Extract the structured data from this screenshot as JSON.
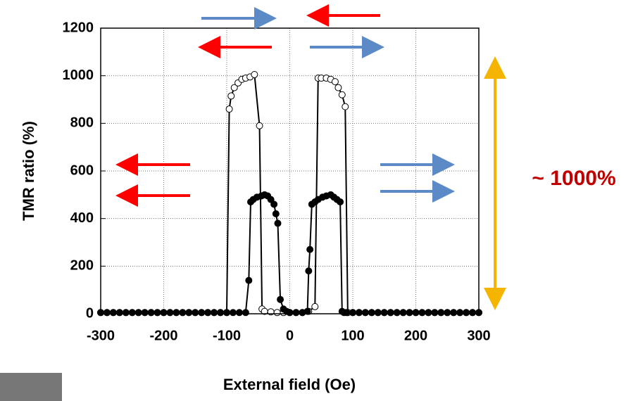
{
  "chart_data": {
    "type": "line",
    "x_label": "External field (Oe)",
    "y_label": "TMR ratio (%)",
    "annotation": "~ 1000%",
    "xlim": [
      -300,
      300
    ],
    "xticks": [
      -300,
      -200,
      -100,
      0,
      100,
      200,
      300
    ],
    "ylim": [
      0,
      1200
    ],
    "yticks": [
      0,
      200,
      400,
      600,
      800,
      1000,
      1200
    ],
    "grid": true,
    "series": [
      {
        "color": "#ffffff",
        "marker_edge": "#000000",
        "x": [
          -300,
          -290,
          -280,
          -270,
          -260,
          -250,
          -240,
          -230,
          -220,
          -210,
          -200,
          -190,
          -180,
          -170,
          -160,
          -150,
          -140,
          -130,
          -120,
          -110,
          -100,
          -96,
          -93,
          -88,
          -82,
          -76,
          -70,
          -63,
          -56,
          -48,
          -44,
          -40,
          -30,
          -20,
          -10,
          0,
          10,
          20,
          30,
          40,
          45,
          50,
          58,
          65,
          72,
          77,
          83,
          88,
          92,
          100,
          110,
          120,
          130,
          140,
          150,
          160,
          170,
          180,
          190,
          200,
          210,
          220,
          230,
          240,
          250,
          260,
          270,
          280,
          290,
          300
        ],
        "values": [
          5,
          5,
          5,
          5,
          5,
          5,
          5,
          5,
          5,
          5,
          5,
          5,
          5,
          5,
          5,
          5,
          5,
          5,
          5,
          5,
          5,
          860,
          915,
          950,
          970,
          985,
          990,
          995,
          1005,
          790,
          20,
          10,
          8,
          5,
          5,
          5,
          5,
          5,
          10,
          30,
          990,
          990,
          990,
          985,
          975,
          950,
          920,
          870,
          5,
          5,
          5,
          5,
          5,
          5,
          5,
          5,
          5,
          5,
          5,
          5,
          5,
          5,
          5,
          5,
          5,
          5,
          5,
          5,
          5,
          5
        ]
      },
      {
        "color": "#000000",
        "marker_edge": "#000000",
        "x": [
          -300,
          -290,
          -280,
          -270,
          -260,
          -250,
          -240,
          -230,
          -220,
          -210,
          -200,
          -190,
          -180,
          -170,
          -160,
          -150,
          -140,
          -130,
          -120,
          -110,
          -100,
          -90,
          -80,
          -70,
          -65,
          -62,
          -58,
          -52,
          -45,
          -40,
          -35,
          -30,
          -25,
          -22,
          -19,
          -15,
          -10,
          -5,
          0,
          10,
          20,
          28,
          30,
          32,
          35,
          40,
          45,
          52,
          58,
          65,
          70,
          75,
          80,
          83,
          86,
          90,
          100,
          110,
          120,
          130,
          140,
          150,
          160,
          170,
          180,
          190,
          200,
          210,
          220,
          230,
          240,
          250,
          260,
          270,
          280,
          290,
          300
        ],
        "values": [
          5,
          5,
          5,
          5,
          5,
          5,
          5,
          5,
          5,
          5,
          5,
          5,
          5,
          5,
          5,
          5,
          5,
          5,
          5,
          5,
          5,
          5,
          5,
          5,
          140,
          470,
          480,
          490,
          495,
          500,
          495,
          480,
          460,
          420,
          380,
          60,
          20,
          10,
          5,
          5,
          5,
          10,
          180,
          270,
          460,
          470,
          480,
          490,
          495,
          500,
          490,
          480,
          470,
          10,
          5,
          5,
          5,
          5,
          5,
          5,
          5,
          5,
          5,
          5,
          5,
          5,
          5,
          5,
          5,
          5,
          5,
          5,
          5,
          5,
          5,
          5,
          5
        ]
      }
    ]
  }
}
